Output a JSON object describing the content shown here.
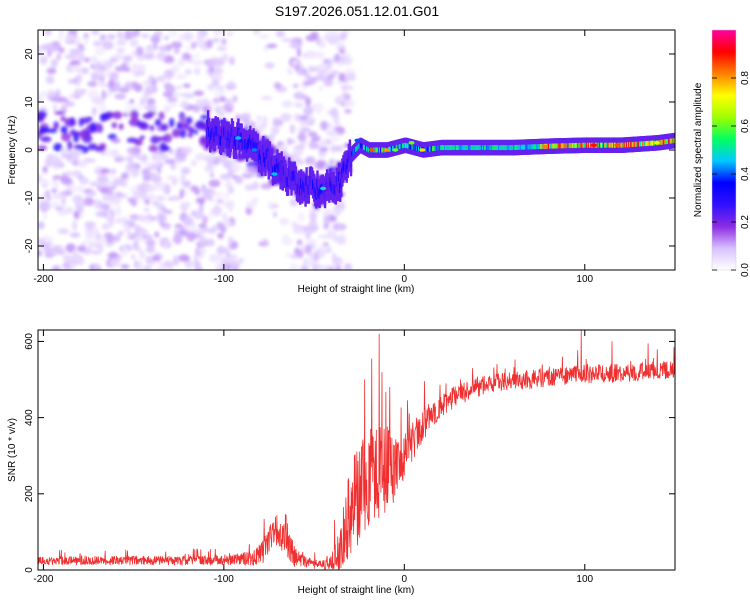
{
  "title": "S197.2026.051.12.01.G01",
  "chart_data": [
    {
      "type": "heatmap",
      "title": "S197.2026.051.12.01.G01",
      "xlabel": "Height of straight line (km)",
      "ylabel": "Frequency (Hz)",
      "xlim": [
        -203,
        150
      ],
      "ylim": [
        -25,
        25
      ],
      "xticks": [
        -200,
        -100,
        0,
        100
      ],
      "yticks": [
        -20,
        -10,
        0,
        10,
        20
      ],
      "ridge": {
        "x": [
          -110,
          -100,
          -90,
          -80,
          -70,
          -60,
          -50,
          -40,
          -35,
          -30,
          -25,
          -20,
          -10,
          0,
          10,
          20,
          40,
          60,
          80,
          100,
          120,
          140,
          150
        ],
        "y": [
          4,
          3,
          2,
          -1,
          -4,
          -7,
          -8,
          -8,
          -6,
          -1,
          1,
          0,
          0,
          1,
          0,
          0.5,
          0.5,
          0.5,
          0.8,
          1,
          1,
          1.5,
          2
        ]
      },
      "scattered_energy_extent": [
        -203,
        -30
      ],
      "colorbar": {
        "label": "Normalized spectral amplitude",
        "min": 0.0,
        "max": 1.0,
        "ticks": [
          0.0,
          0.2,
          0.4,
          0.6,
          0.8
        ],
        "tick_labels": [
          "0.0",
          "0.2",
          "0.4",
          "0.6",
          "0.8"
        ],
        "colors": [
          "#ffffff",
          "#d8c0ff",
          "#8a2be2",
          "#3010ff",
          "#0000ff",
          "#00c8ff",
          "#00ff60",
          "#a0ff00",
          "#ffff00",
          "#ff8000",
          "#ff0000",
          "#ff00a0"
        ]
      }
    },
    {
      "type": "line",
      "xlabel": "Height of straight line (km)",
      "ylabel": "SNR (10 * v/v)",
      "xlim": [
        -203,
        150
      ],
      "ylim": [
        0,
        630
      ],
      "xticks": [
        -200,
        -100,
        0,
        100
      ],
      "yticks": [
        0,
        200,
        400,
        600
      ],
      "color": "#f03030",
      "trend": {
        "x": [
          -203,
          -150,
          -100,
          -85,
          -78,
          -72,
          -66,
          -60,
          -50,
          -40,
          -36,
          -33,
          -30,
          -25,
          -20,
          -15,
          -10,
          -5,
          0,
          10,
          20,
          30,
          40,
          50,
          70,
          100,
          130,
          150
        ],
        "y": [
          25,
          25,
          25,
          30,
          50,
          110,
          80,
          30,
          15,
          15,
          40,
          100,
          160,
          200,
          230,
          250,
          260,
          275,
          300,
          380,
          430,
          460,
          480,
          490,
          500,
          515,
          520,
          525
        ]
      },
      "noise": {
        "x": [
          -203,
          -100,
          -85,
          -75,
          -65,
          -55,
          -45,
          -36,
          -30,
          -20,
          -10,
          0,
          20,
          50,
          150
        ],
        "y": [
          12,
          12,
          20,
          40,
          40,
          15,
          10,
          60,
          120,
          140,
          120,
          60,
          30,
          25,
          25
        ]
      },
      "spikes": [
        {
          "x": -14,
          "y": 620
        },
        {
          "x": -18,
          "y": 555
        },
        {
          "x": -22,
          "y": 500
        },
        {
          "x": -8,
          "y": 480
        },
        {
          "x": 98,
          "y": 630
        },
        {
          "x": 115,
          "y": 600
        },
        {
          "x": 135,
          "y": 595
        }
      ]
    }
  ]
}
